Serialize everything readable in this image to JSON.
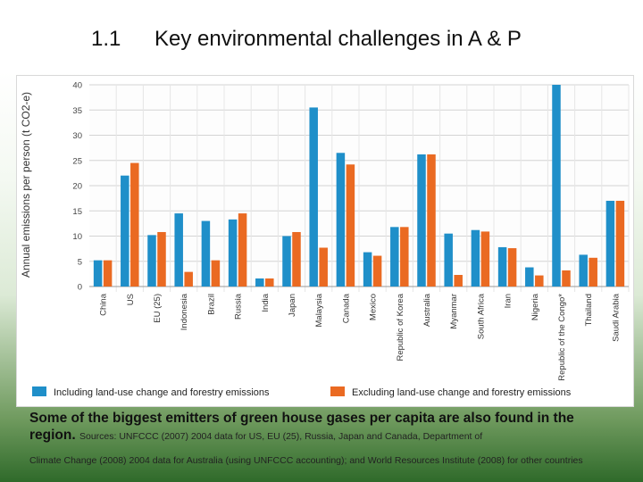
{
  "slide": {
    "number": "1.1",
    "title": "Key environmental challenges in A & P"
  },
  "caption": {
    "main": "Some of the biggest emitters of green house gases per capita are also found in the region.",
    "sources_line1": "Sources: UNFCCC (2007) 2004 data for US, EU (25), Russia, Japan and Canada, Department of",
    "sources_line2": "Climate Change (2008) 2004 data for Australia (using UNFCCC accounting); and World Resources Institute (2008) for other countries"
  },
  "colors": {
    "including": "#1f8fc9",
    "excluding": "#ea6a22"
  },
  "chart_data": {
    "type": "bar",
    "title": "",
    "xlabel": "",
    "ylabel": "Annual emissions per person (t CO2-e)",
    "ylim": [
      0,
      40
    ],
    "yticks": [
      0,
      5,
      10,
      15,
      20,
      25,
      30,
      35,
      40
    ],
    "grid": true,
    "legend_position": "bottom",
    "categories": [
      "China",
      "US",
      "EU (25)",
      "Indonesia",
      "Brazil",
      "Russia",
      "India",
      "Japan",
      "Malaysia",
      "Canada",
      "Mexico",
      "Republic of Korea",
      "Australia",
      "Myanmar",
      "South Africa",
      "Iran",
      "Nigeria",
      "Republic of the Congo*",
      "Thailand",
      "Saudi Arabia"
    ],
    "series": [
      {
        "name": "Including land-use change and forestry emissions",
        "values": [
          5.2,
          22,
          10.2,
          14.5,
          13,
          13.3,
          1.6,
          10,
          35.5,
          26.5,
          6.8,
          11.8,
          26.2,
          10.5,
          11.2,
          7.8,
          3.8,
          40,
          6.3,
          17
        ]
      },
      {
        "name": "Excluding land-use change and forestry emissions",
        "values": [
          5.2,
          24.5,
          10.8,
          2.9,
          5.2,
          14.5,
          1.6,
          10.8,
          7.7,
          24.2,
          6.1,
          11.8,
          26.2,
          2.3,
          10.9,
          7.6,
          2.2,
          3.2,
          5.7,
          17
        ]
      }
    ]
  }
}
